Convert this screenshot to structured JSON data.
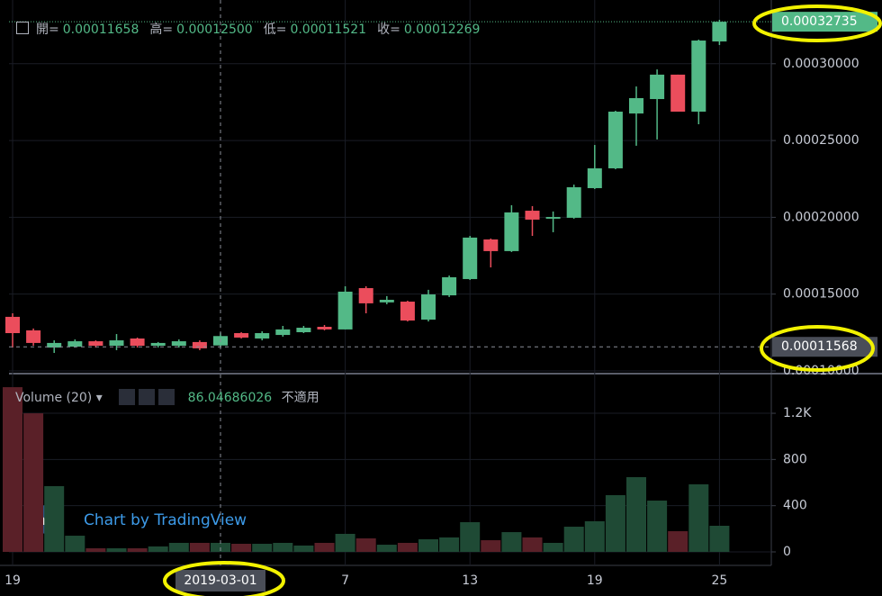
{
  "chart_data": {
    "type": "candlestick",
    "legend": [
      {
        "label": "開=",
        "value": "0.00011658"
      },
      {
        "label": "高=",
        "value": "0.00012500"
      },
      {
        "label": "低=",
        "value": "0.00011521"
      },
      {
        "label": "收=",
        "value": "0.00012269"
      }
    ],
    "categories": [
      "19",
      null,
      null,
      null,
      null,
      null,
      null,
      null,
      null,
      null,
      null,
      null,
      null,
      null,
      null,
      null,
      "7",
      null,
      null,
      null,
      null,
      null,
      "13",
      null,
      null,
      null,
      null,
      null,
      "19",
      null,
      null,
      null,
      null,
      null,
      "25"
    ],
    "open": [
      0.0001352,
      0.0001264,
      0.0001152,
      0.0001158,
      0.0001193,
      0.0001164,
      0.0001211,
      0.0001164,
      0.0001164,
      0.0001188,
      0.00011658,
      0.0001246,
      0.0001211,
      0.0001234,
      0.0001252,
      0.0001287,
      0.000127,
      0.0001539,
      0.0001446,
      0.0001451,
      0.0001334,
      0.0001492,
      0.0001598,
      0.0001856,
      0.000178,
      0.0002043,
      0.0001991,
      0.0001997,
      0.000219,
      0.0002319,
      0.0002676,
      0.000277,
      0.0002929,
      0.0002688,
      0.0003145
    ],
    "high": [
      0.0001375,
      0.0001276,
      0.0001199,
      0.0001205,
      0.0001199,
      0.000124,
      0.0001217,
      0.0001188,
      0.0001205,
      0.0001199,
      0.000125,
      0.0001252,
      0.0001258,
      0.0001293,
      0.0001293,
      0.0001299,
      0.0001551,
      0.0001551,
      0.0001487,
      0.0001457,
      0.0001528,
      0.0001621,
      0.0001879,
      0.0001862,
      0.0002079,
      0.0002073,
      0.0002038,
      0.0002213,
      0.0002471,
      0.0002694,
      0.0002852,
      0.0002963,
      0.0002929,
      0.0003157,
      0.0003286
    ],
    "low": [
      0.0001152,
      0.0001164,
      0.0001117,
      0.0001152,
      0.0001152,
      0.0001135,
      0.0001152,
      0.0001152,
      0.0001152,
      0.0001135,
      0.00011521,
      0.0001211,
      0.0001199,
      0.0001223,
      0.0001246,
      0.0001264,
      0.000127,
      0.0001375,
      0.0001434,
      0.0001322,
      0.0001322,
      0.0001481,
      0.0001592,
      0.0001674,
      0.0001774,
      0.0001879,
      0.0001903,
      0.0001991,
      0.0002184,
      0.0002313,
      0.0002466,
      0.0002507,
      0.0002688,
      0.0002606,
      0.0003122
    ],
    "close": [
      0.0001246,
      0.0001182,
      0.0001182,
      0.0001193,
      0.0001164,
      0.0001199,
      0.0001164,
      0.0001182,
      0.0001193,
      0.0001147,
      0.00012269,
      0.0001217,
      0.0001246,
      0.000127,
      0.0001281,
      0.000127,
      0.0001516,
      0.000144,
      0.0001463,
      0.0001328,
      0.0001498,
      0.000161,
      0.0001868,
      0.000178,
      0.0002032,
      0.0001985,
      0.0002002,
      0.0002196,
      0.0002319,
      0.0002688,
      0.0002776,
      0.0002929,
      0.0002688,
      0.0003151,
      0.00032735
    ],
    "up_color": "#53b987",
    "down_color": "#eb4d5c",
    "ylim": [
      9.94e-05,
      0.0003415
    ],
    "yticks": [
      {
        "value": 0.0001,
        "label": "0.00010000"
      },
      {
        "value": 0.00015,
        "label": "0.00015000"
      },
      {
        "value": 0.0002,
        "label": "0.00020000"
      },
      {
        "value": 0.00025,
        "label": "0.00025000"
      },
      {
        "value": 0.0003,
        "label": "0.00030000"
      }
    ],
    "last_price": {
      "value": 0.00032735,
      "label": "0.00032735"
    },
    "crosshair_price": {
      "value": 0.00011568,
      "label": "0.00011568"
    },
    "crosshair_date": "2019-03-01",
    "grid": true,
    "volume": {
      "title": "Volume (20)",
      "ma_value": "86.04686026",
      "status": "不適用",
      "values": [
        1426,
        1200,
        569,
        140,
        31,
        31,
        31,
        47,
        78,
        78,
        78,
        70,
        70,
        78,
        55,
        78,
        156,
        117,
        62,
        78,
        109,
        125,
        257,
        101,
        171,
        125,
        78,
        218,
        265,
        491,
        647,
        444,
        179,
        585,
        226
      ],
      "up_color": "#1f4a35",
      "down_color": "#5a2028",
      "ylim": [
        -117,
        1520
      ],
      "yticks": [
        0,
        400,
        800,
        {
          "value": 1200,
          "label": "1.2K"
        }
      ]
    },
    "watermark": "Chart by TradingView"
  }
}
